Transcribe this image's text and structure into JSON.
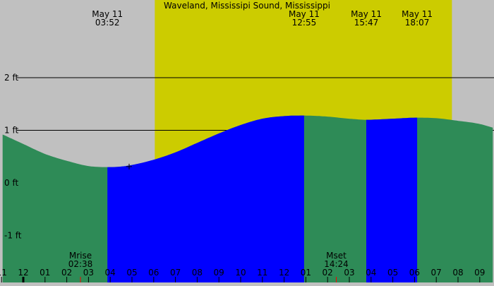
{
  "chart_data": {
    "type": "area",
    "title": "Waveland, Mississipi Sound, Mississippi",
    "xlabel": "",
    "ylabel": "",
    "x_unit": "hour of day (May 10 23:00 to May 12 10:00)",
    "xlim": [
      -0.95,
      21.6
    ],
    "ylim": [
      -1.85,
      3.35
    ],
    "y_ticks": [
      {
        "value": 2,
        "label": "2 ft",
        "gridline": true
      },
      {
        "value": 1,
        "label": "1 ft",
        "gridline": true
      },
      {
        "value": 0,
        "label": "0 ft",
        "gridline": false
      },
      {
        "value": -1,
        "label": "-1 ft",
        "gridline": false
      }
    ],
    "x_ticks": [
      {
        "value": -1,
        "label": "11"
      },
      {
        "value": 0,
        "label": "12"
      },
      {
        "value": 1,
        "label": "01"
      },
      {
        "value": 2,
        "label": "02"
      },
      {
        "value": 3,
        "label": "03"
      },
      {
        "value": 4,
        "label": "04"
      },
      {
        "value": 5,
        "label": "05"
      },
      {
        "value": 6,
        "label": "06"
      },
      {
        "value": 7,
        "label": "07"
      },
      {
        "value": 8,
        "label": "08"
      },
      {
        "value": 9,
        "label": "09"
      },
      {
        "value": 10,
        "label": "10"
      },
      {
        "value": 11,
        "label": "11"
      },
      {
        "value": 12,
        "label": "12"
      },
      {
        "value": 13,
        "label": "01"
      },
      {
        "value": 14,
        "label": "02"
      },
      {
        "value": 15,
        "label": "03"
      },
      {
        "value": 16,
        "label": "04"
      },
      {
        "value": 17,
        "label": "05"
      },
      {
        "value": 18,
        "label": "06"
      },
      {
        "value": 19,
        "label": "07"
      },
      {
        "value": 20,
        "label": "08"
      },
      {
        "value": 21,
        "label": "09"
      }
    ],
    "daylight": {
      "start": 6.05,
      "end": 19.72,
      "color": "#cccc00"
    },
    "series": [
      {
        "color": "#2e8b57",
        "x": [
          -0.95,
          0,
          1,
          2,
          3,
          3.87,
          4.5,
          5,
          6,
          7,
          8,
          9,
          10,
          11,
          12,
          12.92,
          14,
          15,
          15.78,
          17,
          18.12,
          19,
          20,
          21,
          21.6
        ],
        "y": [
          0.92,
          0.74,
          0.55,
          0.42,
          0.32,
          0.3,
          0.31,
          0.34,
          0.44,
          0.58,
          0.76,
          0.94,
          1.1,
          1.22,
          1.27,
          1.28,
          1.26,
          1.22,
          1.2,
          1.22,
          1.24,
          1.23,
          1.18,
          1.12,
          1.05
        ]
      }
    ],
    "highlight_ranges": [
      {
        "start": 3.87,
        "end": 12.92,
        "color": "#0000ff"
      },
      {
        "start": 15.78,
        "end": 18.12,
        "color": "#0000ff"
      }
    ],
    "events": [
      {
        "date": "May 11",
        "time": "03:52",
        "x": 3.87
      },
      {
        "date": "May 11",
        "time": "12:55",
        "x": 12.92
      },
      {
        "date": "May 11",
        "time": "15:47",
        "x": 15.78
      },
      {
        "date": "May 11",
        "time": "18:07",
        "x": 18.12
      }
    ],
    "moon": [
      {
        "label": "Mrise",
        "time": "02:38",
        "x": 2.63
      },
      {
        "label": "Mset",
        "time": "14:24",
        "x": 14.4
      }
    ],
    "marker": {
      "x": 4.87,
      "y": 0.31
    }
  }
}
